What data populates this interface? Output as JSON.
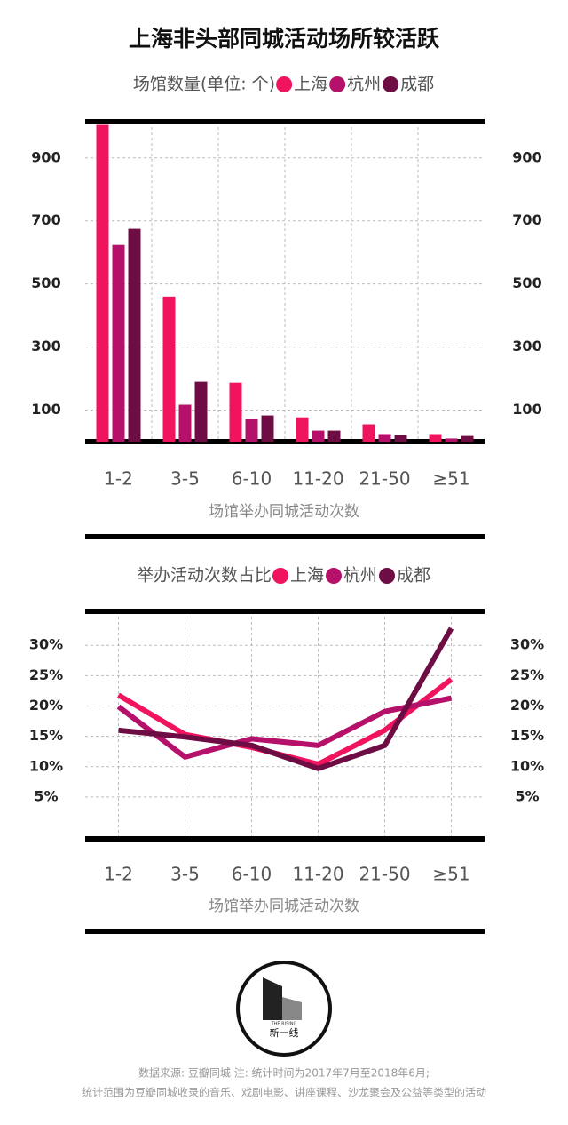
{
  "title": "上海非头部同城活动场所较活跃",
  "chart_data": [
    {
      "type": "bar",
      "subtitle": "场馆数量(单位: 个)",
      "xlabel": "场馆举办同城活动次数",
      "categories": [
        "1-2",
        "3-5",
        "6-10",
        "11-20",
        "21-50",
        "≥51"
      ],
      "series": [
        {
          "name": "上海",
          "color": "#f0145f",
          "values": [
            1005,
            460,
            187,
            77,
            55,
            24
          ]
        },
        {
          "name": "杭州",
          "color": "#b5106a",
          "values": [
            624,
            117,
            72,
            35,
            24,
            10
          ]
        },
        {
          "name": "成都",
          "color": "#6e0d44",
          "values": [
            675,
            190,
            83,
            35,
            21,
            18
          ]
        }
      ],
      "ylim": [
        0,
        1015
      ],
      "yticks": [
        100,
        300,
        500,
        700,
        900
      ],
      "grid": true
    },
    {
      "type": "line",
      "subtitle": "举办活动次数占比",
      "xlabel": "场馆举办同城活动次数",
      "categories": [
        "1-2",
        "3-5",
        "6-10",
        "11-20",
        "21-50",
        "≥51"
      ],
      "series": [
        {
          "name": "上海",
          "color": "#f0145f",
          "values": [
            21.8,
            15.3,
            13.2,
            10.4,
            16.0,
            24.4
          ]
        },
        {
          "name": "杭州",
          "color": "#b5106a",
          "values": [
            19.9,
            11.6,
            14.6,
            13.5,
            19.1,
            21.3
          ]
        },
        {
          "name": "成都",
          "color": "#6e0d44",
          "values": [
            16.0,
            14.9,
            13.5,
            9.7,
            13.5,
            32.8
          ]
        }
      ],
      "ylim": [
        -1.9,
        35.6
      ],
      "yticks": [
        {
          "value": 5,
          "label": "5%"
        },
        {
          "value": 10,
          "label": "10%"
        },
        {
          "value": 15,
          "label": "15%"
        },
        {
          "value": 20,
          "label": "20%"
        },
        {
          "value": 25,
          "label": "25%"
        },
        {
          "value": 30,
          "label": "30%"
        }
      ],
      "grid": true
    }
  ],
  "logo": "新一线",
  "logo_tag": "THE RISING",
  "source": [
    "数据来源: 豆瓣同城  注: 统计时间为2017年7月至2018年6月;",
    "统计范围为豆瓣同城收录的音乐、戏剧电影、讲座课程、沙龙聚会及公益等类型的活动"
  ]
}
